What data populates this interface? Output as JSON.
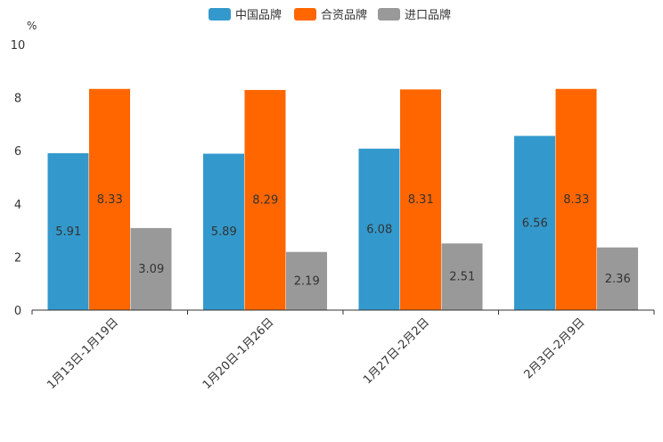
{
  "chart_data": {
    "type": "bar",
    "unit": "%",
    "categories": [
      "1月13日-1月19日",
      "1月20日-1月26日",
      "1月27日-2月2日",
      "2月3日-2月9日"
    ],
    "series": [
      {
        "name": "中国品牌",
        "values": [
          5.91,
          5.89,
          6.08,
          6.56
        ],
        "color": "#3399cc"
      },
      {
        "name": "合资品牌",
        "values": [
          8.33,
          8.29,
          8.31,
          8.33
        ],
        "color": "#ff6600"
      },
      {
        "name": "进口品牌",
        "values": [
          3.09,
          2.19,
          2.51,
          2.36
        ],
        "color": "#999999"
      }
    ],
    "yticks": [
      0,
      2,
      4,
      6,
      8,
      10
    ],
    "ylim": [
      0,
      10
    ],
    "legend_position": "top-center",
    "grid": false
  }
}
